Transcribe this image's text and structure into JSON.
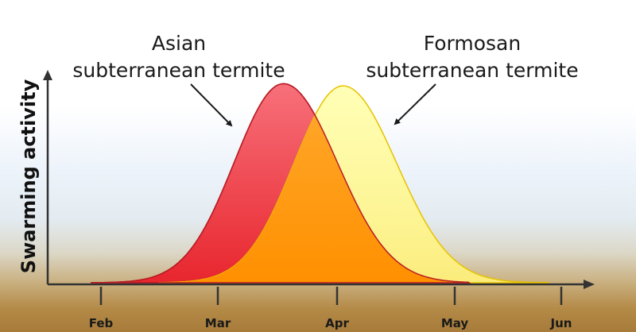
{
  "chart_data": {
    "type": "area",
    "ylabel": "Swarming activity",
    "xlabel": "",
    "categories": [
      "Feb",
      "Mar",
      "Apr",
      "May",
      "Jun"
    ],
    "series": [
      {
        "name": "Asian subterranean termite",
        "name_lines": [
          "Asian",
          "subterranean termite"
        ],
        "color": "#f04b54",
        "peak_month": 3.55,
        "peak_activity": 0.93
      },
      {
        "name": "Formosan subterranean termite",
        "name_lines": [
          "Formosan",
          "subterranean termite"
        ],
        "color": "#ffff66",
        "peak_month": 4.05,
        "peak_activity": 0.92
      }
    ],
    "overlap_color": "#ff9b1a",
    "grid": false,
    "legend": "annotated labels with arrows"
  }
}
